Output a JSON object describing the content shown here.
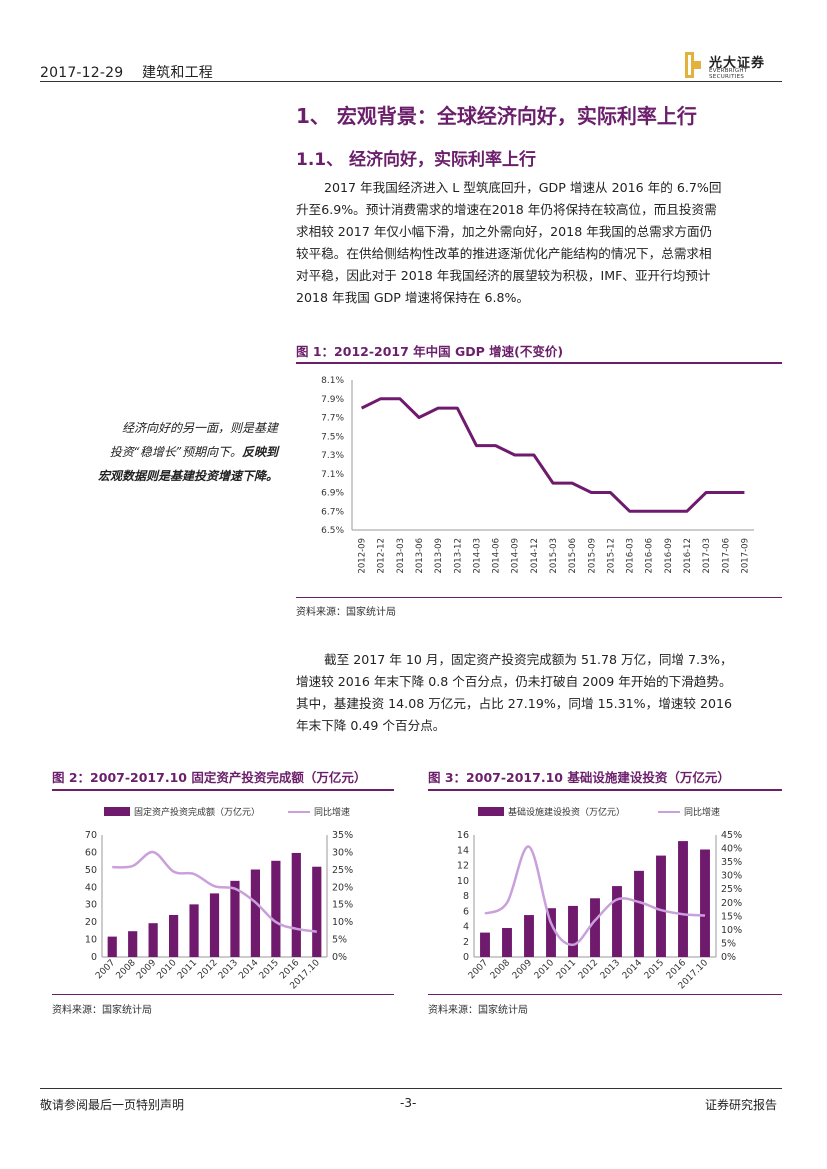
{
  "header": {
    "date": "2017-12-29",
    "section": "建筑和工程",
    "logo_cn": "光大证券",
    "logo_en": "EVERBRIGHT SECURITIES"
  },
  "headings": {
    "h1": "1、 宏观背景：全球经济向好，实际利率上行",
    "h2": "1.1、 经济向好，实际利率上行"
  },
  "paragraphs": {
    "p1_lines": [
      "2017 年我国经济进入 L 型筑底回升，GDP 增速从 2016 年的 6.7%回",
      "升至6.9%。预计消费需求的增速在2018 年仍将保持在较高位，而且投资需",
      "求相较 2017 年仅小幅下滑，加之外需向好，2018 年我国的总需求方面仍",
      "较平稳。在供给侧结构性改革的推进逐渐优化产能结构的情况下，总需求相",
      "对平稳，因此对于 2018 年我国经济的展望较为积极，IMF、亚开行均预计",
      "2018 年我国 GDP 增速将保持在 6.8%。"
    ],
    "p2_lines": [
      "截至 2017 年 10 月，固定资产投资完成额为 51.78 万亿，同增 7.3%，",
      "增速较 2016 年末下降 0.8 个百分点，仍未打破自 2009 年开始的下滑趋势。",
      "其中，基建投资 14.08 万亿元，占比 27.19%，同增 15.31%，增速较 2016",
      "年末下降 0.49 个百分点。"
    ]
  },
  "sidebar": {
    "line1": "经济向好的另一面，则是基建",
    "line2": "投资“稳增长”预期向下。",
    "line2_bold": "反映到",
    "line3_bold": "宏观数据则是基建投资增速下降。"
  },
  "figures": {
    "fig1_title": "图 1：2012-2017 年中国 GDP 增速(不变价)",
    "fig2_title": "图 2：2007-2017.10 固定资产投资完成额（万亿元）",
    "fig3_title": "图 3：2007-2017.10 基础设施建设投资（万亿元）",
    "source": "资料来源：国家统计局"
  },
  "footer": {
    "left": "敬请参阅最后一页特别声明",
    "center": "-3-",
    "right": "证券研究报告"
  },
  "colors": {
    "accent": "#6b1f6b",
    "bar": "#701a6e",
    "line_light": "#c9a0dc"
  },
  "chart_data": [
    {
      "type": "line",
      "title": "图 1：2012-2017 年中国 GDP 增速(不变价)",
      "categories": [
        "2012-09",
        "2012-12",
        "2013-03",
        "2013-06",
        "2013-09",
        "2013-12",
        "2014-03",
        "2014-06",
        "2014-09",
        "2014-12",
        "2015-03",
        "2015-06",
        "2015-09",
        "2015-12",
        "2016-03",
        "2016-06",
        "2016-09",
        "2016-12",
        "2017-03",
        "2017-06",
        "2017-09"
      ],
      "series": [
        {
          "values": [
            7.8,
            7.9,
            7.9,
            7.7,
            7.8,
            7.8,
            7.4,
            7.4,
            7.3,
            7.3,
            7.0,
            7.0,
            6.9,
            6.9,
            6.7,
            6.7,
            6.7,
            6.7,
            6.9,
            6.9,
            6.9
          ]
        }
      ],
      "ylim": [
        6.5,
        8.1
      ],
      "yticks": [
        "8.1%",
        "7.9%",
        "7.7%",
        "7.5%",
        "7.3%",
        "7.1%",
        "6.9%",
        "6.7%",
        "6.5%"
      ]
    },
    {
      "type": "bar+line",
      "title": "图 2：2007-2017.10 固定资产投资完成额（万亿元）",
      "categories": [
        "2007",
        "2008",
        "2009",
        "2010",
        "2011",
        "2012",
        "2013",
        "2014",
        "2015",
        "2016",
        "2017.10"
      ],
      "series": [
        {
          "name": "固定资产投资完成额（万亿元）",
          "type": "bar",
          "axis": "left",
          "values": [
            11.7,
            14.8,
            19.4,
            24.1,
            30.2,
            36.5,
            43.7,
            50.2,
            55.2,
            59.7,
            51.8
          ]
        },
        {
          "name": "同比增速",
          "type": "line",
          "axis": "right",
          "values": [
            25.8,
            26.1,
            30.1,
            24.5,
            23.8,
            20.3,
            19.6,
            15.7,
            10.0,
            8.1,
            7.3
          ]
        }
      ],
      "ylim": [
        0,
        70
      ],
      "y2lim": [
        0,
        35
      ],
      "yticks": [
        "70",
        "60",
        "50",
        "40",
        "30",
        "20",
        "10",
        "0"
      ],
      "y2ticks": [
        "35%",
        "30%",
        "25%",
        "20%",
        "15%",
        "10%",
        "5%",
        "0%"
      ]
    },
    {
      "type": "bar+line",
      "title": "图 3：2007-2017.10 基础设施建设投资（万亿元）",
      "categories": [
        "2007",
        "2008",
        "2009",
        "2010",
        "2011",
        "2012",
        "2013",
        "2014",
        "2015",
        "2016",
        "2017.10"
      ],
      "series": [
        {
          "name": "基础设施建设投资（万亿元）",
          "type": "bar",
          "axis": "left",
          "values": [
            3.2,
            3.8,
            5.5,
            6.4,
            6.7,
            7.7,
            9.3,
            11.3,
            13.3,
            15.2,
            14.1
          ]
        },
        {
          "name": "同比增速",
          "type": "line",
          "axis": "right",
          "values": [
            16.0,
            20.0,
            40.7,
            12.5,
            4.5,
            13.5,
            21.2,
            20.3,
            17.3,
            15.8,
            15.3
          ]
        }
      ],
      "ylim": [
        0,
        16
      ],
      "y2lim": [
        0,
        45
      ],
      "yticks": [
        "16",
        "14",
        "12",
        "10",
        "8",
        "6",
        "4",
        "2",
        "0"
      ],
      "y2ticks": [
        "45%",
        "40%",
        "35%",
        "30%",
        "25%",
        "20%",
        "15%",
        "10%",
        "5%",
        "0%"
      ]
    }
  ]
}
